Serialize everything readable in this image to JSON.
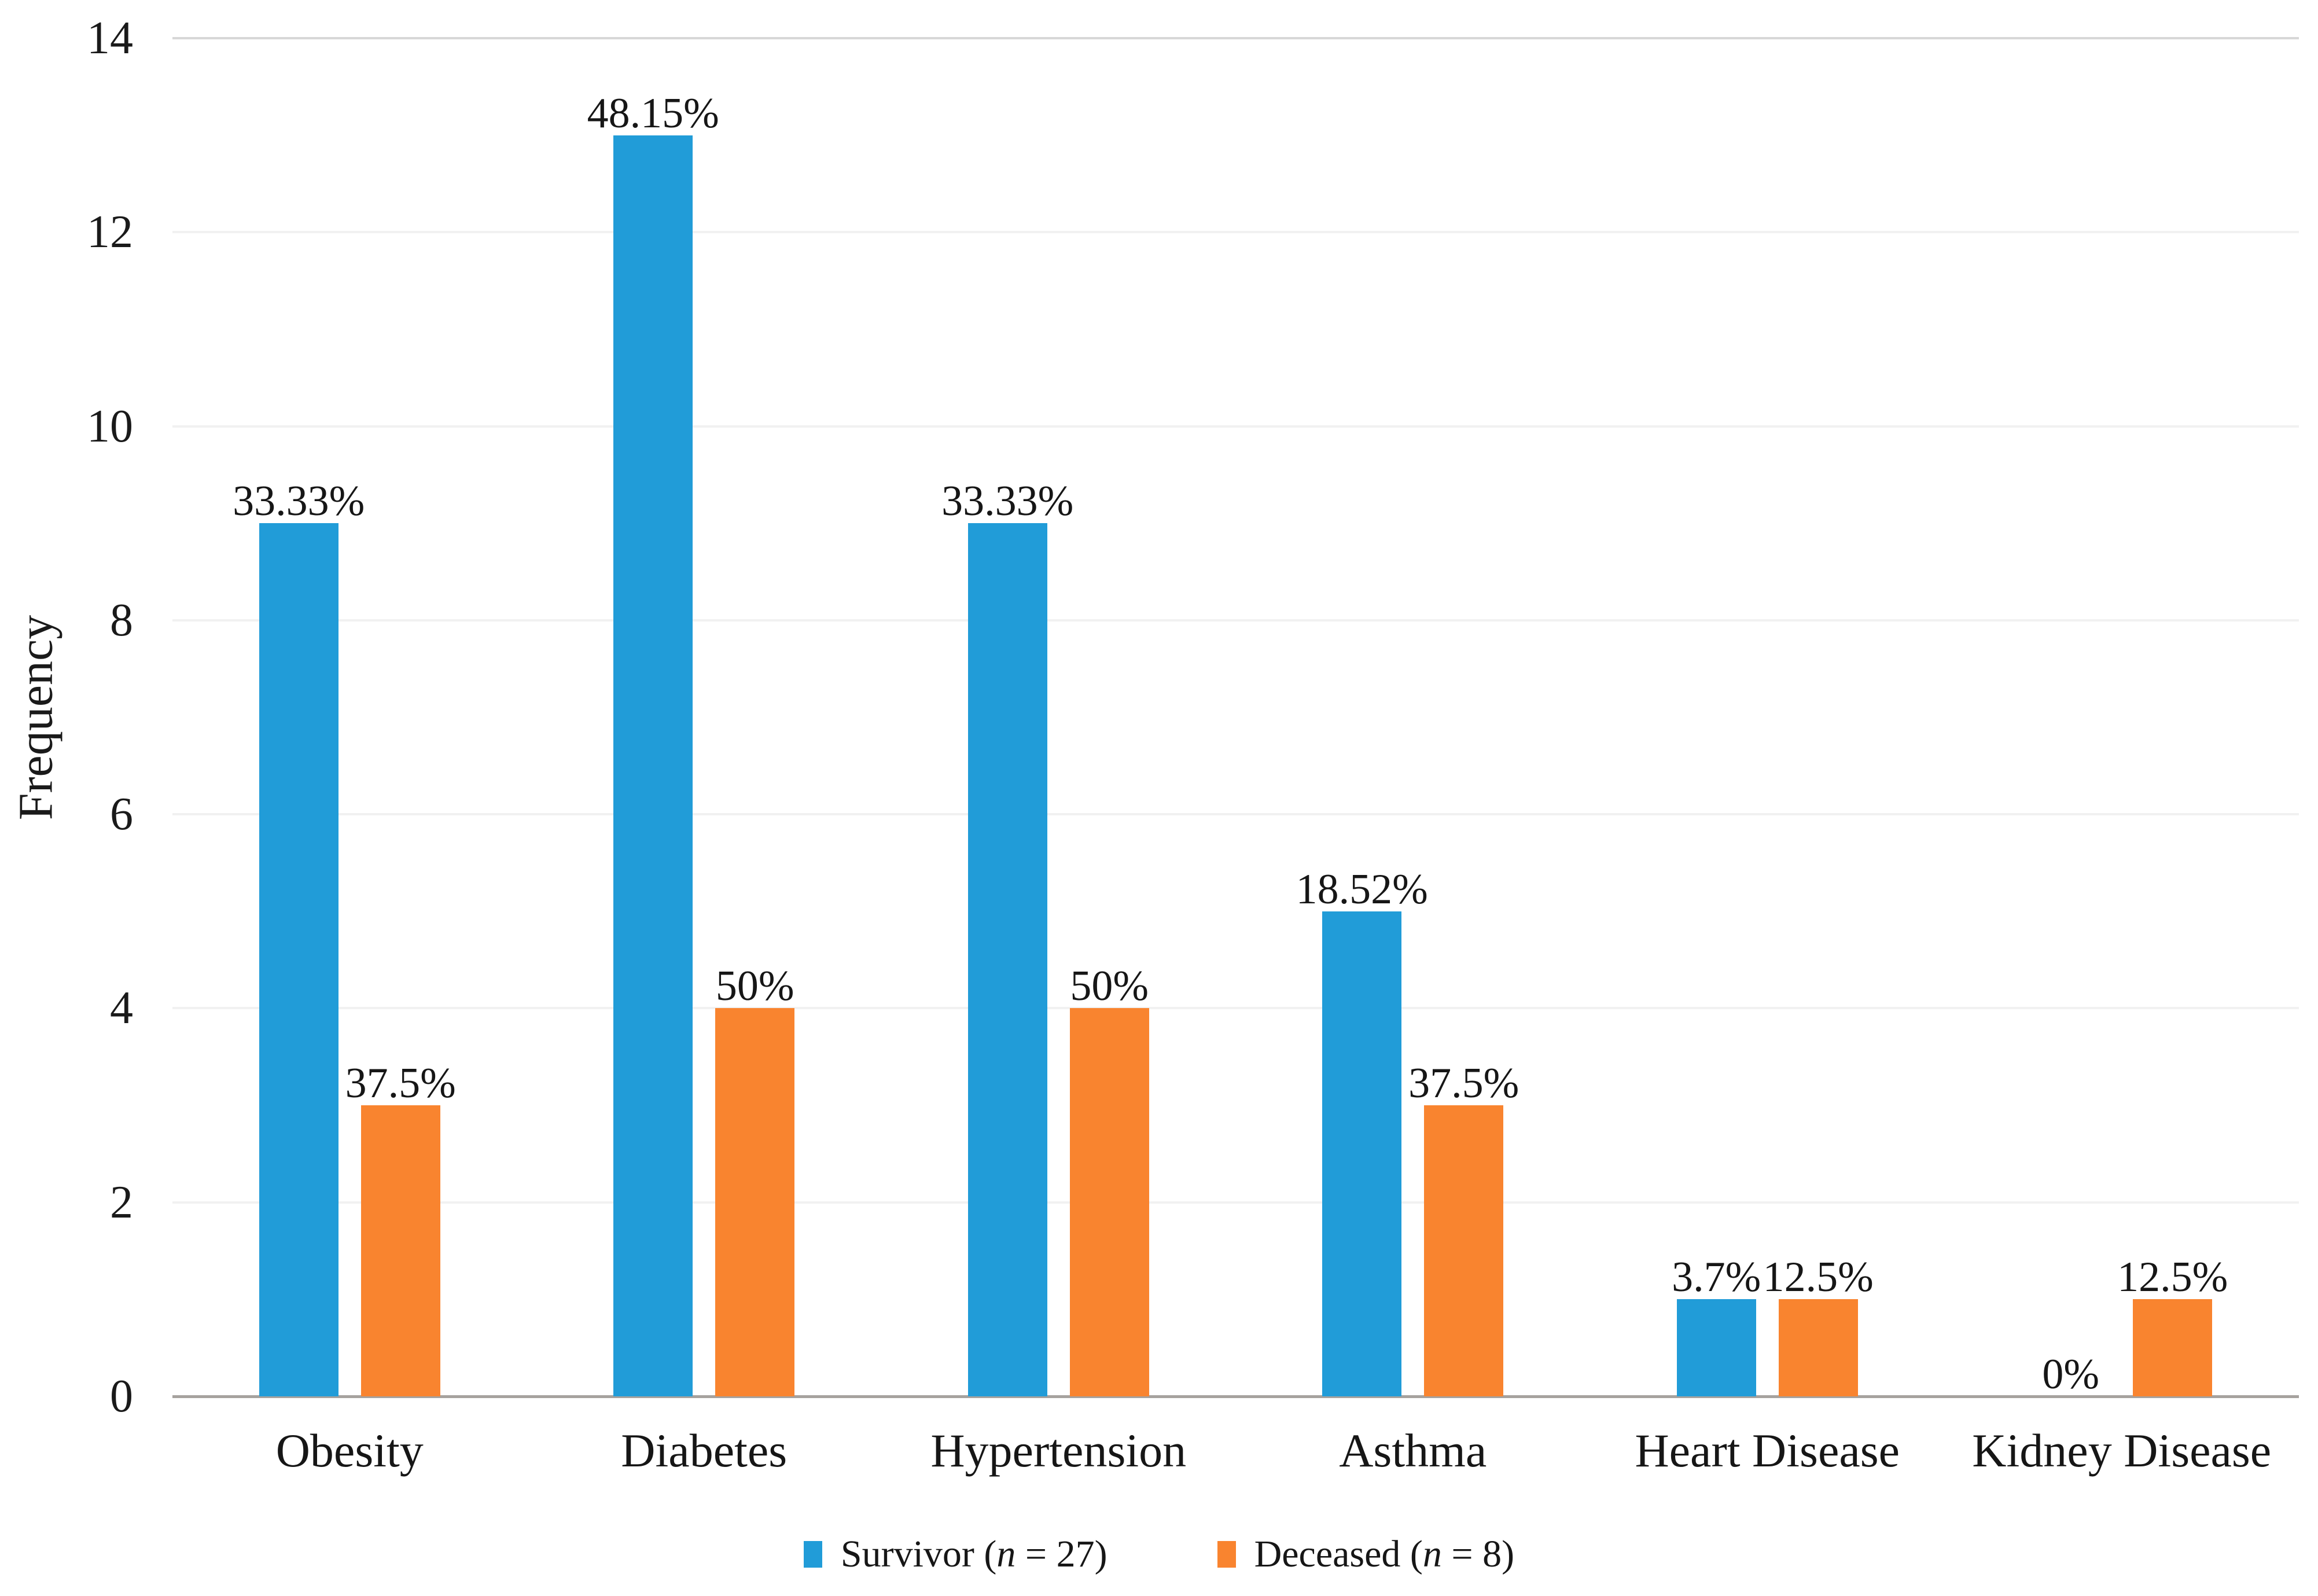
{
  "figure": {
    "background_color": "#ffffff",
    "text_color": "#1a1a1a",
    "axis_line_color": "#a6a29e",
    "gridline_color": "#f1f1f1",
    "top_gridline_color": "#d7d7d7"
  },
  "chart_data": {
    "type": "bar",
    "title": "",
    "xlabel": "",
    "ylabel": "Frequency",
    "categories": [
      "Obesity",
      "Diabetes",
      "Hypertension",
      "Asthma",
      "Heart Disease",
      "Kidney Disease"
    ],
    "series": [
      {
        "name": "Survivor (n = 27)",
        "color": "#219cd8",
        "values": [
          9,
          13,
          9,
          5,
          1,
          0
        ],
        "labels": [
          "33.33%",
          "48.15%",
          "33.33%",
          "18.52%",
          "3.7%",
          "0%"
        ]
      },
      {
        "name": "Deceased (n = 8)",
        "color": "#f9842f",
        "values": [
          3,
          4,
          4,
          3,
          1,
          1
        ],
        "labels": [
          "37.5%",
          "50%",
          "50%",
          "37.5%",
          "12.5%",
          "12.5%"
        ]
      }
    ],
    "ylim": [
      0,
      14
    ],
    "yticks": [
      0,
      2,
      4,
      6,
      8,
      10,
      12,
      14
    ],
    "grid": true,
    "legend_position": "bottom"
  },
  "legend": {
    "items": [
      {
        "swatch_color": "#219cd8",
        "prefix": "Survivor (",
        "variable": "n",
        "suffix": " = 27)"
      },
      {
        "swatch_color": "#f9842f",
        "prefix": "Deceased (",
        "variable": "n",
        "suffix": " = 8)"
      }
    ]
  }
}
